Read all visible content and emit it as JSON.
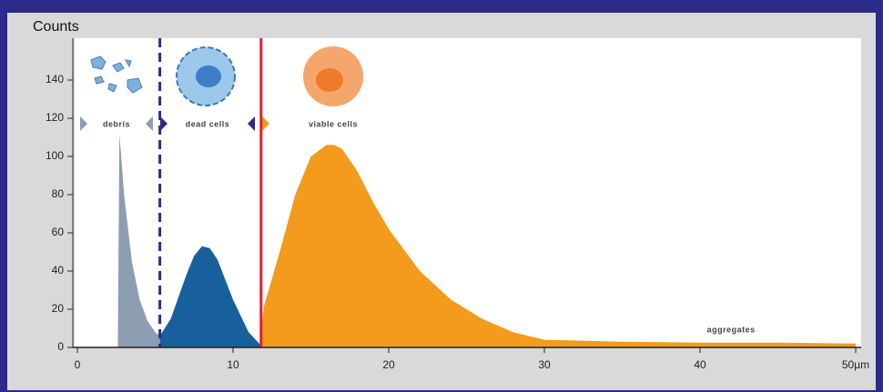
{
  "chart_data": {
    "type": "area",
    "y_label": "Counts",
    "xlim": [
      0,
      50
    ],
    "ylim": [
      0,
      160
    ],
    "xticks": [
      0,
      10,
      20,
      30,
      40,
      {
        "value": 50,
        "label": "50µm"
      }
    ],
    "yticks": [
      0,
      20,
      40,
      60,
      80,
      100,
      120,
      140
    ],
    "series": [
      {
        "name": "debris",
        "color": "#8d9db2",
        "x": [
          2.6,
          2.7,
          3.0,
          3.5,
          4.0,
          4.5,
          5.0,
          5.3
        ],
        "values": [
          0,
          112,
          80,
          45,
          25,
          14,
          8,
          6
        ]
      },
      {
        "name": "dead cells",
        "color": "#17609c",
        "x": [
          5.3,
          6,
          7,
          7.5,
          8,
          8.5,
          9,
          10,
          11,
          11.8
        ],
        "values": [
          6,
          15,
          38,
          48,
          53,
          52,
          46,
          25,
          8,
          1
        ]
      },
      {
        "name": "viable cells",
        "color": "#f49a1c",
        "x": [
          11.8,
          12,
          13,
          14,
          15,
          16,
          16.5,
          17,
          18,
          19,
          20,
          22,
          24,
          26,
          28,
          30,
          35,
          40,
          45,
          50
        ],
        "values": [
          10,
          22,
          50,
          80,
          100,
          106,
          106,
          104,
          92,
          76,
          62,
          40,
          25,
          15,
          8,
          4,
          3,
          2.5,
          2.5,
          2
        ]
      }
    ],
    "gates": [
      {
        "x": 5.3,
        "color": "#2e2a86",
        "style": "dashed"
      },
      {
        "x": 11.8,
        "color": "#e0202a",
        "style": "solid"
      }
    ],
    "annotation": {
      "text": "aggregates",
      "x": 42,
      "y": 9
    }
  }
}
